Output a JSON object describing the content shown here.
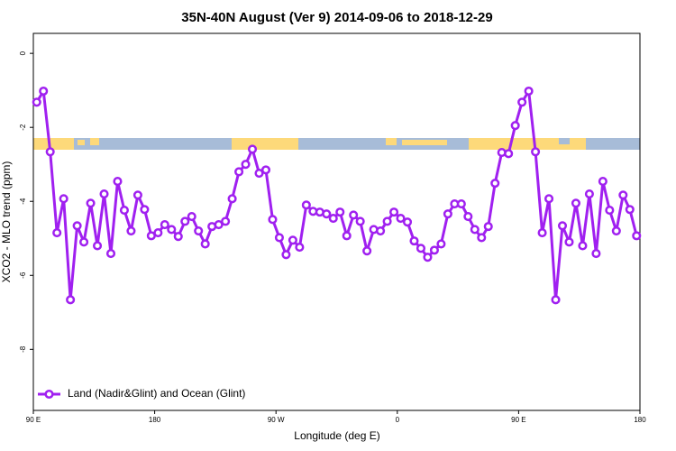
{
  "chart_data": {
    "type": "line",
    "title": "35N-40N August (Ver 9)   2014-09-06 to 2018-12-29",
    "x_label": "Longitude (deg E)",
    "y_label": "XCO2 - MLO trend (ppm)",
    "xlim": [
      90,
      540
    ],
    "xticks": [
      {
        "value": 90,
        "label": "90 E"
      },
      180,
      {
        "value": 270,
        "label": "90 W"
      },
      {
        "value": 360,
        "label": "0"
      },
      {
        "value": 450,
        "label": "90 E"
      },
      {
        "value": 540,
        "label": "180"
      }
    ],
    "ylim": [
      -9.65,
      0.54
    ],
    "yticks": [
      0,
      -2,
      -4,
      -6,
      -8
    ],
    "legend": "bottom-left",
    "x": [
      92.5,
      97.5,
      102.5,
      107.5,
      112.5,
      117.5,
      122.5,
      127.5,
      132.5,
      137.5,
      142.5,
      147.5,
      152.5,
      157.5,
      162.5,
      167.5,
      172.5,
      177.5,
      182.5,
      187.5,
      192.5,
      197.5,
      202.5,
      207.5,
      212.5,
      217.5,
      222.5,
      227.5,
      232.5,
      237.5,
      242.5,
      247.5,
      252.5,
      257.5,
      262.5,
      267.5,
      272.5,
      277.5,
      282.5,
      287.5,
      292.5,
      297.5,
      302.5,
      307.5,
      312.5,
      317.5,
      322.5,
      327.5,
      332.5,
      337.5,
      342.5,
      347.5,
      352.5,
      357.5,
      362.5,
      367.5,
      372.5,
      377.5,
      382.5,
      387.5,
      392.5,
      397.5,
      402.5,
      407.5,
      412.5,
      417.5,
      422.5,
      427.5,
      432.5,
      437.5,
      442.5,
      447.5,
      452.5,
      457.5,
      462.5,
      467.5,
      472.5,
      477.5,
      482.5,
      487.5,
      492.5,
      497.5,
      502.5,
      507.5,
      512.5,
      517.5,
      522.5,
      527.5,
      532.5,
      537.5
    ],
    "series": [
      {
        "name": "Land (Nadir&Glint) and Ocean (Glint)",
        "color": "#a020f0",
        "values": [
          -1.32,
          -1.02,
          -2.66,
          -4.85,
          -3.93,
          -6.66,
          -4.66,
          -5.1,
          -4.05,
          -5.2,
          -3.8,
          -5.41,
          -3.46,
          -4.24,
          -4.8,
          -3.83,
          -4.22,
          -4.93,
          -4.85,
          -4.63,
          -4.76,
          -4.95,
          -4.54,
          -4.41,
          -4.8,
          -5.15,
          -4.68,
          -4.63,
          -4.54,
          -3.93,
          -3.2,
          -3.0,
          -2.59,
          -3.24,
          -3.15,
          -4.49,
          -4.98,
          -5.44,
          -5.05,
          -5.24,
          -4.1,
          -4.27,
          -4.29,
          -4.34,
          -4.46,
          -4.29,
          -4.93,
          -4.37,
          -4.54,
          -5.34,
          -4.76,
          -4.8,
          -4.54,
          -4.29,
          -4.46,
          -4.56,
          -5.07,
          -5.27,
          -5.51,
          -5.32,
          -5.15,
          -4.34,
          -4.07,
          -4.07,
          -4.41,
          -4.76,
          -4.98,
          -4.68,
          -3.51,
          -2.68,
          -2.71,
          -1.95,
          -1.32,
          -1.02,
          -2.66,
          -4.85,
          -3.93,
          -6.66,
          -4.66,
          -5.1,
          -4.05,
          -5.2,
          -3.8,
          -5.41,
          -3.46,
          -4.24,
          -4.8,
          -3.83,
          -4.22,
          -4.93
        ]
      }
    ]
  }
}
